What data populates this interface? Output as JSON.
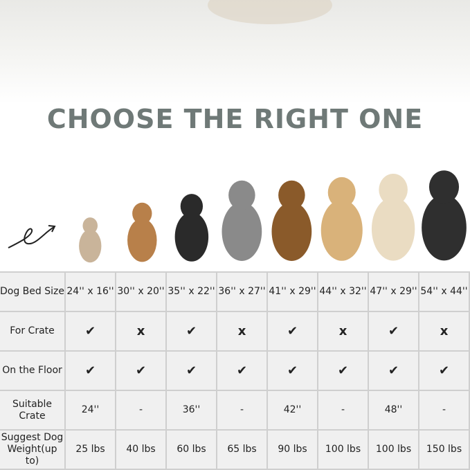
{
  "title": "CHOOSE THE RIGHT ONE",
  "columns": [
    "24'' x 16''",
    "30'' x 20''",
    "35'' x 22''",
    "36'' x 27''",
    "41'' x 29''",
    "44'' x 32''",
    "47'' x 29''",
    "54'' x 44''"
  ],
  "rows": [
    {
      "label": "Dog Bed Size",
      "values": [
        "24'' x 16''",
        "30'' x 20''",
        "35'' x 22''",
        "36'' x 27''",
        "41'' x 29''",
        "44'' x 32''",
        "47'' x 29''",
        "54'' x 44''"
      ]
    },
    {
      "label": "For Crate",
      "values": [
        "✔",
        "x",
        "✔",
        "x",
        "✔",
        "x",
        "✔",
        "x"
      ]
    },
    {
      "label": "On the Floor",
      "values": [
        "✔",
        "✔",
        "✔",
        "✔",
        "✔",
        "✔",
        "✔",
        "✔"
      ]
    },
    {
      "label": "Suitable Crate",
      "values": [
        "24''",
        "-",
        "36''",
        "-",
        "42''",
        "-",
        "48''",
        "-"
      ]
    },
    {
      "label": "Suggest Dog Weight(up to)",
      "values": [
        "25 lbs",
        "40 lbs",
        "60 lbs",
        "65 lbs",
        "90 lbs",
        "100 lbs",
        "100 lbs",
        "150 lbs"
      ]
    }
  ],
  "dog_colors": [
    "#c9b49a",
    "#b8804a",
    "#2a2a2a",
    "#8a8a8a",
    "#8a5a2a",
    "#d9b27a",
    "#eadcc2",
    "#2f2f2f"
  ]
}
